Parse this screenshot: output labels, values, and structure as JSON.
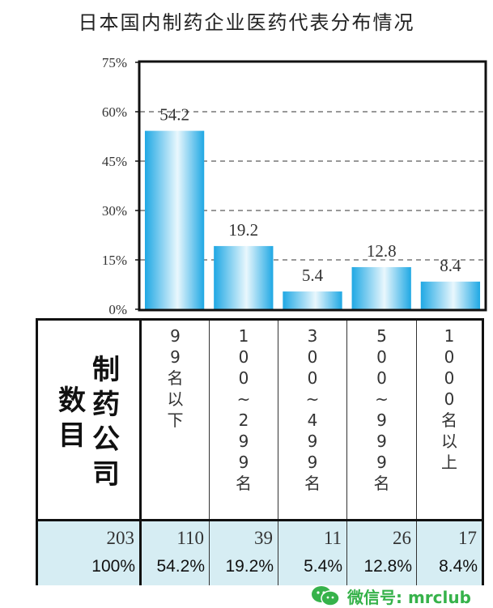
{
  "chart_data": {
    "type": "bar",
    "title": "日本国内制药企业医药代表分布情况",
    "categories": [
      "99名以下",
      "100~299名",
      "300~499名",
      "500~999名",
      "1000名以上"
    ],
    "values": [
      54.2,
      19.2,
      5.4,
      12.8,
      8.4
    ],
    "value_labels": [
      "54.2",
      "19.2",
      "5.4",
      "12.8",
      "8.4"
    ],
    "yticks": [
      "0%",
      "15%",
      "30%",
      "45%",
      "60%",
      "75%"
    ],
    "ytick_values": [
      0,
      15,
      30,
      45,
      60,
      75
    ],
    "ylim": [
      0,
      75
    ],
    "grid": "dashed horizontal",
    "bar_color": "#29aee6",
    "xlabel": "",
    "ylabel": ""
  },
  "table": {
    "row_header_col1": "数目",
    "row_header_col2": "制药公司",
    "columns": [
      {
        "header": "99名以下",
        "count": "110",
        "pct": "54.2%"
      },
      {
        "header": "100~299名",
        "count": "39",
        "pct": "19.2%"
      },
      {
        "header": "300~499名",
        "count": "11",
        "pct": "5.4%"
      },
      {
        "header": "500~999名",
        "count": "26",
        "pct": "12.8%"
      },
      {
        "header": "1000名以上",
        "count": "17",
        "pct": "8.4%"
      }
    ],
    "total_count": "203",
    "total_pct": "100%"
  },
  "watermark": {
    "text": "微信号: mrclub",
    "icon": "wechat-icon",
    "color": "#36b24a"
  }
}
